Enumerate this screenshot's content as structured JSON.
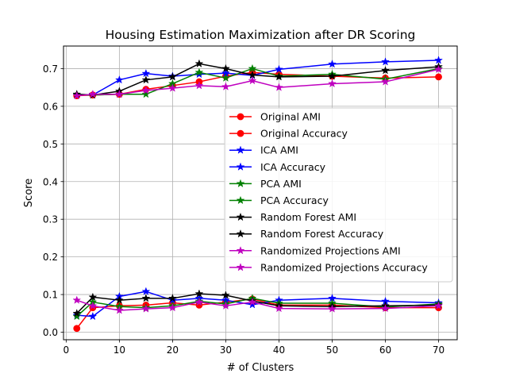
{
  "chart_data": {
    "type": "line",
    "title": "Housing Estimation Maximization after DR Scoring",
    "xlabel": "# of Clusters",
    "ylabel": "Score",
    "xlim": [
      -0.5,
      73.5
    ],
    "ylim": [
      -0.02,
      0.76
    ],
    "xticks": [
      0,
      10,
      20,
      30,
      40,
      50,
      60,
      70
    ],
    "yticks": [
      0.0,
      0.1,
      0.2,
      0.3,
      0.4,
      0.5,
      0.6,
      0.7
    ],
    "grid": true,
    "legend_position": "center-right",
    "x": [
      2,
      5,
      10,
      15,
      20,
      25,
      30,
      35,
      40,
      50,
      60,
      70
    ],
    "series": [
      {
        "name": "Original AMI",
        "color": "#ff0000",
        "marker": "circle",
        "values": [
          0.01,
          0.065,
          0.07,
          0.072,
          0.078,
          0.072,
          0.08,
          0.088,
          0.072,
          0.072,
          0.065,
          0.065
        ]
      },
      {
        "name": "Original Accuracy",
        "color": "#ff0000",
        "marker": "circle",
        "values": [
          0.628,
          0.63,
          0.632,
          0.645,
          0.655,
          0.665,
          0.68,
          0.69,
          0.685,
          0.68,
          0.675,
          0.678
        ]
      },
      {
        "name": "ICA AMI",
        "color": "#0000ff",
        "marker": "star",
        "values": [
          0.045,
          0.042,
          0.095,
          0.108,
          0.085,
          0.09,
          0.085,
          0.073,
          0.085,
          0.09,
          0.082,
          0.078
        ]
      },
      {
        "name": "ICA Accuracy",
        "color": "#0000ff",
        "marker": "star",
        "values": [
          0.63,
          0.63,
          0.67,
          0.687,
          0.68,
          0.685,
          0.688,
          0.682,
          0.698,
          0.712,
          0.718,
          0.722
        ]
      },
      {
        "name": "PCA AMI",
        "color": "#008000",
        "marker": "star",
        "values": [
          0.042,
          0.08,
          0.068,
          0.065,
          0.07,
          0.082,
          0.075,
          0.09,
          0.077,
          0.077,
          0.067,
          0.075
        ]
      },
      {
        "name": "PCA Accuracy",
        "color": "#008000",
        "marker": "star",
        "values": [
          0.63,
          0.63,
          0.632,
          0.632,
          0.66,
          0.69,
          0.675,
          0.7,
          0.68,
          0.685,
          0.672,
          0.7
        ]
      },
      {
        "name": "Random Forest AMI",
        "color": "#000000",
        "marker": "star",
        "values": [
          0.05,
          0.093,
          0.085,
          0.09,
          0.09,
          0.102,
          0.098,
          0.083,
          0.07,
          0.068,
          0.07,
          0.072
        ]
      },
      {
        "name": "Random Forest Accuracy",
        "color": "#000000",
        "marker": "star",
        "values": [
          0.632,
          0.63,
          0.64,
          0.67,
          0.678,
          0.713,
          0.7,
          0.683,
          0.678,
          0.68,
          0.695,
          0.705
        ]
      },
      {
        "name": "Randomized Projections AMI",
        "color": "#bf00bf",
        "marker": "star",
        "values": [
          0.085,
          0.07,
          0.058,
          0.062,
          0.065,
          0.08,
          0.07,
          0.08,
          0.063,
          0.062,
          0.063,
          0.07
        ]
      },
      {
        "name": "Randomized Projections Accuracy",
        "color": "#bf00bf",
        "marker": "star",
        "values": [
          0.628,
          0.632,
          0.632,
          0.642,
          0.648,
          0.655,
          0.652,
          0.668,
          0.65,
          0.66,
          0.665,
          0.698
        ]
      }
    ]
  }
}
